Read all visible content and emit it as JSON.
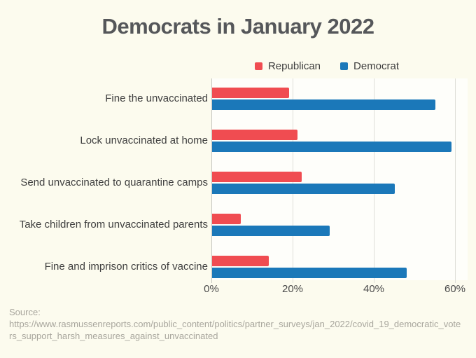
{
  "title": "Democrats in January 2022",
  "legend": [
    {
      "label": "Republican",
      "color": "#F04C51"
    },
    {
      "label": "Democrat",
      "color": "#1B78B9"
    }
  ],
  "chart_data": {
    "type": "bar",
    "orientation": "horizontal",
    "title": "Democrats in January 2022",
    "categories": [
      "Fine the unvaccinated",
      "Lock unvaccinated at home",
      "Send unvaccinated to quarantine camps",
      "Take children from unvaccinated parents",
      "Fine and imprison critics of vaccine"
    ],
    "series": [
      {
        "name": "Republican",
        "color": "#F04C51",
        "values": [
          19,
          21,
          22,
          7,
          14
        ]
      },
      {
        "name": "Democrat",
        "color": "#1B78B9",
        "values": [
          55,
          59,
          45,
          29,
          48
        ]
      }
    ],
    "x_ticks": [
      "0%",
      "20%",
      "40%",
      "60%"
    ],
    "xlim": [
      0,
      60
    ],
    "grid": true,
    "legend_position": "top"
  },
  "source": {
    "label": "Source:",
    "url": "https://www.rasmussenreports.com/public_content/politics/partner_surveys/jan_2022/covid_19_democratic_voters_support_harsh_measures_against_unvaccinated"
  },
  "colors": {
    "background": "#FCFBEE",
    "plot_background": "#FEFEFA",
    "republican": "#F04C51",
    "democrat": "#1B78B9",
    "gridline": "#DEDED8",
    "axis": "#C7C7C1",
    "title_text": "#55575A",
    "label_text": "#3F3F3F",
    "source_text": "#A8A69D"
  }
}
